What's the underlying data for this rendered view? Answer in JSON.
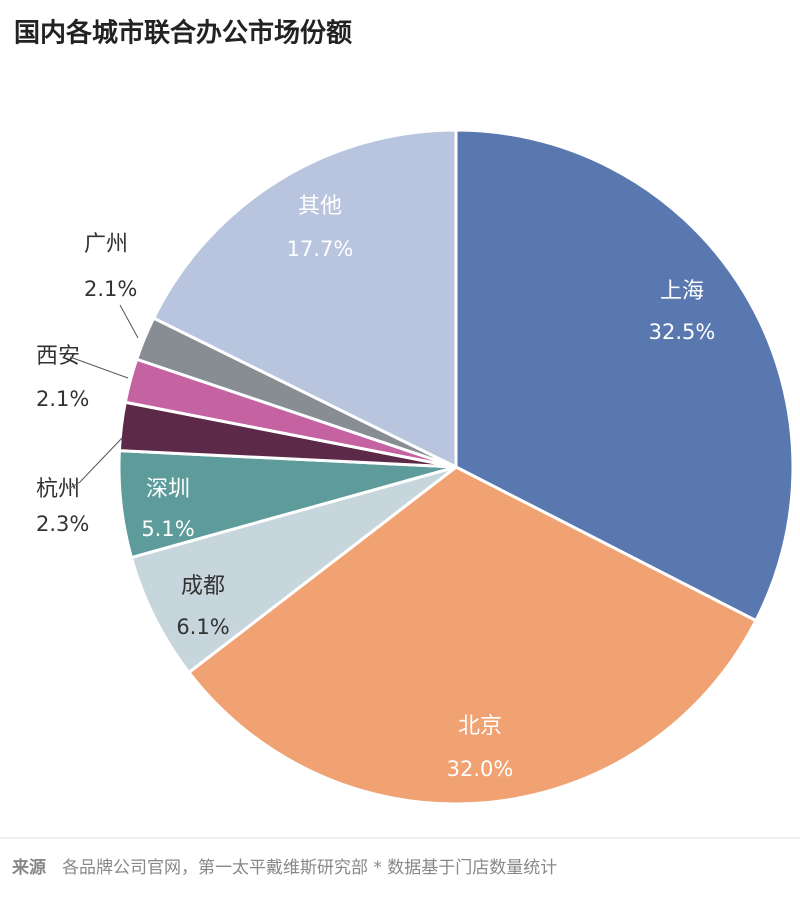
{
  "chart_data": {
    "type": "pie",
    "title": "国内各城市联合办公市场份额",
    "categories": [
      "上海",
      "北京",
      "成都",
      "深圳",
      "杭州",
      "西安",
      "广州",
      "其他"
    ],
    "values": [
      32.5,
      32.0,
      6.1,
      5.1,
      2.3,
      2.1,
      2.1,
      17.7
    ],
    "value_labels": [
      "32.5%",
      "32.0%",
      "6.1%",
      "5.1%",
      "2.3%",
      "2.1%",
      "2.1%",
      "17.7%"
    ],
    "colors": [
      "#5a78b0",
      "#f0a272",
      "#c6d6dc",
      "#5e9b9b",
      "#5c2a48",
      "#c462a2",
      "#878d93",
      "#b9c4de"
    ],
    "source_label": "来源",
    "source": "各品牌公司官网，第一太平戴维斯研究部 * 数据基于门店数量统计"
  }
}
